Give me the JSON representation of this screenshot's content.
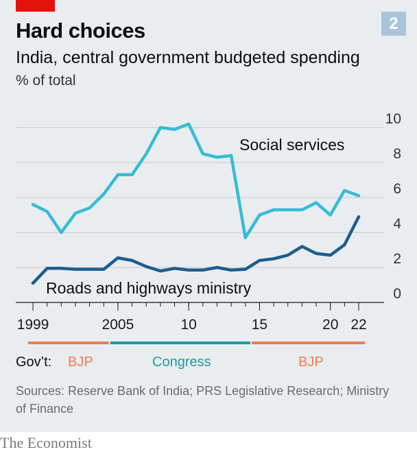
{
  "header": {
    "title": "Hard choices",
    "subtitle": "India, central government budgeted spending",
    "unit": "% of total",
    "badge": "2"
  },
  "colors": {
    "background": "#e9edf0",
    "accent_red": "#e3120b",
    "social_services": "#36bcd6",
    "roads": "#1d5d8c",
    "bjp": "#f07d4f",
    "congress": "#1a9aa8",
    "badge": "#a9c4dc"
  },
  "chart_data": {
    "type": "line",
    "title": "Hard choices",
    "subtitle": "India, central government budgeted spending",
    "ylabel": "% of total",
    "ylim": [
      0,
      10
    ],
    "yticks": [
      0,
      2,
      4,
      6,
      8,
      10
    ],
    "xlim": [
      1999,
      2022
    ],
    "xtick_labels": [
      {
        "year": 1999,
        "label": "1999"
      },
      {
        "year": 2005,
        "label": "2005"
      },
      {
        "year": 2010,
        "label": "10"
      },
      {
        "year": 2015,
        "label": "15"
      },
      {
        "year": 2020,
        "label": "20"
      },
      {
        "year": 2022,
        "label": "22"
      }
    ],
    "grid": true,
    "series": [
      {
        "name": "Social services",
        "x": [
          1999,
          2000,
          2001,
          2002,
          2003,
          2004,
          2005,
          2006,
          2007,
          2008,
          2009,
          2010,
          2011,
          2012,
          2013,
          2014,
          2015,
          2016,
          2017,
          2018,
          2019,
          2020,
          2021,
          2022
        ],
        "values": [
          5.6,
          5.2,
          4.0,
          5.1,
          5.4,
          6.2,
          7.3,
          7.3,
          8.5,
          10.0,
          9.9,
          10.2,
          8.5,
          8.3,
          8.4,
          3.7,
          5.0,
          5.3,
          5.3,
          5.3,
          5.7,
          5.0,
          6.4,
          6.1
        ]
      },
      {
        "name": "Roads and highways ministry",
        "x": [
          1999,
          2000,
          2001,
          2002,
          2003,
          2004,
          2005,
          2006,
          2007,
          2008,
          2009,
          2010,
          2011,
          2012,
          2013,
          2014,
          2015,
          2016,
          2017,
          2018,
          2019,
          2020,
          2021,
          2022
        ],
        "values": [
          1.1,
          1.95,
          1.95,
          1.9,
          1.9,
          1.9,
          2.55,
          2.4,
          2.05,
          1.8,
          1.95,
          1.85,
          1.85,
          2.0,
          1.85,
          1.9,
          2.4,
          2.5,
          2.7,
          3.2,
          2.8,
          2.7,
          3.3,
          4.9
        ]
      }
    ],
    "annotations": [
      {
        "text": "Social services",
        "series": "Social services"
      },
      {
        "text": "Roads and highways ministry",
        "series": "Roads and highways ministry"
      }
    ],
    "governments": {
      "label": "Gov’t:",
      "periods": [
        {
          "name": "BJP",
          "from": 1998.6,
          "to": 2004.4,
          "color": "#f07d4f"
        },
        {
          "name": "Congress",
          "from": 2004.4,
          "to": 2014.4,
          "color": "#1a9aa8"
        },
        {
          "name": "BJP",
          "from": 2014.4,
          "to": 2022.5,
          "color": "#f07d4f"
        }
      ]
    }
  },
  "sources": "Sources: Reserve Bank of India; PRS Legislative Research; Ministry of Finance",
  "footer": "The Economist"
}
